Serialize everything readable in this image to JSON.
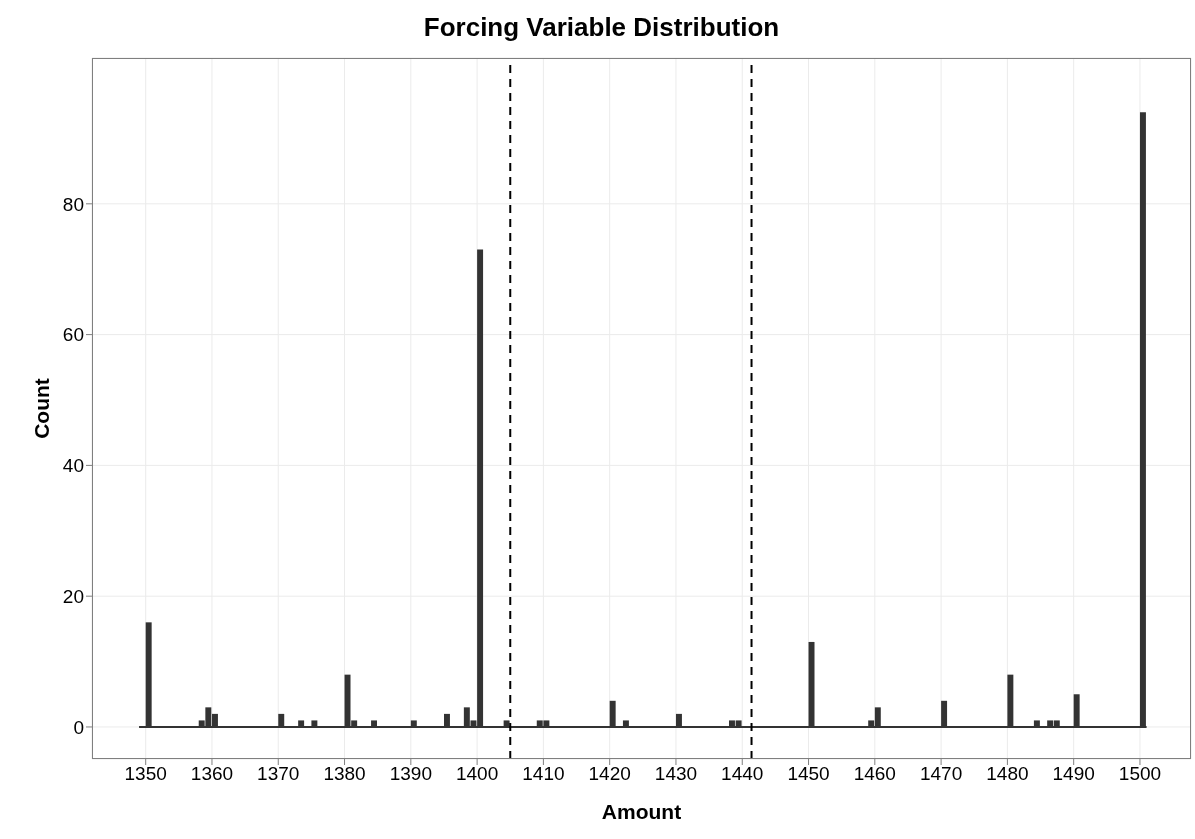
{
  "chart_data": {
    "type": "histogram",
    "title": "Forcing Variable Distribution",
    "xlabel": "Amount",
    "ylabel": "Count",
    "bins": [
      1349,
      1350,
      1351,
      1352,
      1353,
      1354,
      1355,
      1356,
      1357,
      1358,
      1359,
      1360,
      1361,
      1362,
      1363,
      1364,
      1365,
      1366,
      1367,
      1368,
      1369,
      1370,
      1371,
      1372,
      1373,
      1374,
      1375,
      1376,
      1377,
      1378,
      1379,
      1380,
      1381,
      1382,
      1383,
      1384,
      1385,
      1386,
      1387,
      1388,
      1389,
      1390,
      1391,
      1392,
      1393,
      1394,
      1395,
      1396,
      1397,
      1398,
      1399,
      1400,
      1401,
      1402,
      1403,
      1404,
      1405,
      1406,
      1407,
      1408,
      1409,
      1410,
      1411,
      1412,
      1413,
      1414,
      1415,
      1416,
      1417,
      1418,
      1419,
      1420,
      1421,
      1422,
      1423,
      1424,
      1425,
      1426,
      1427,
      1428,
      1429,
      1430,
      1431,
      1432,
      1433,
      1434,
      1435,
      1436,
      1437,
      1438,
      1439,
      1440,
      1441,
      1442,
      1443,
      1444,
      1445,
      1446,
      1447,
      1448,
      1449,
      1450,
      1451,
      1452,
      1453,
      1454,
      1455,
      1456,
      1457,
      1458,
      1459,
      1460,
      1461,
      1462,
      1463,
      1464,
      1465,
      1466,
      1467,
      1468,
      1469,
      1470,
      1471,
      1472,
      1473,
      1474,
      1475,
      1476,
      1477,
      1478,
      1479,
      1480,
      1481,
      1482,
      1483,
      1484,
      1485,
      1486,
      1487,
      1488,
      1489,
      1490,
      1491,
      1492,
      1493,
      1494,
      1495,
      1496,
      1497,
      1498,
      1499,
      1500,
      1501
    ],
    "values": [
      0,
      16,
      0,
      0,
      0,
      0,
      0,
      0,
      0,
      1,
      3,
      2,
      0,
      0,
      0,
      0,
      0,
      0,
      0,
      0,
      0,
      2,
      0,
      0,
      1,
      0,
      1,
      0,
      0,
      0,
      0,
      8,
      1,
      0,
      0,
      1,
      0,
      0,
      0,
      0,
      0,
      1,
      0,
      0,
      0,
      0,
      2,
      0,
      0,
      3,
      1,
      73,
      0,
      0,
      0,
      1,
      0,
      0,
      0,
      0,
      1,
      1,
      0,
      0,
      0,
      0,
      0,
      0,
      0,
      0,
      0,
      4,
      0,
      1,
      0,
      0,
      0,
      0,
      0,
      0,
      0,
      2,
      0,
      0,
      0,
      0,
      0,
      0,
      0,
      1,
      1,
      0,
      0,
      0,
      0,
      0,
      0,
      0,
      0,
      0,
      0,
      13,
      0,
      0,
      0,
      0,
      0,
      0,
      0,
      0,
      1,
      3,
      0,
      0,
      0,
      0,
      0,
      0,
      0,
      0,
      0,
      4,
      0,
      0,
      0,
      0,
      0,
      0,
      0,
      0,
      0,
      8,
      0,
      0,
      0,
      1,
      0,
      1,
      1,
      0,
      0,
      5,
      0,
      0,
      0,
      0,
      0,
      0,
      0,
      0,
      0,
      94
    ],
    "color": "#333333",
    "xlim": [
      1341.9,
      1507.7
    ],
    "ylim": [
      -4.9,
      102.3
    ],
    "xticks": [
      1350,
      1360,
      1370,
      1380,
      1390,
      1400,
      1410,
      1420,
      1430,
      1440,
      1450,
      1460,
      1470,
      1480,
      1490,
      1500
    ],
    "yticks": [
      0,
      20,
      40,
      60,
      80
    ],
    "grid": true,
    "ref_lines": [
      {
        "axis": "x",
        "value": 1405,
        "line_style": "dashed",
        "color": "#000000"
      },
      {
        "axis": "x",
        "value": 1441.4,
        "line_style": "dashed",
        "color": "#000000"
      }
    ]
  }
}
